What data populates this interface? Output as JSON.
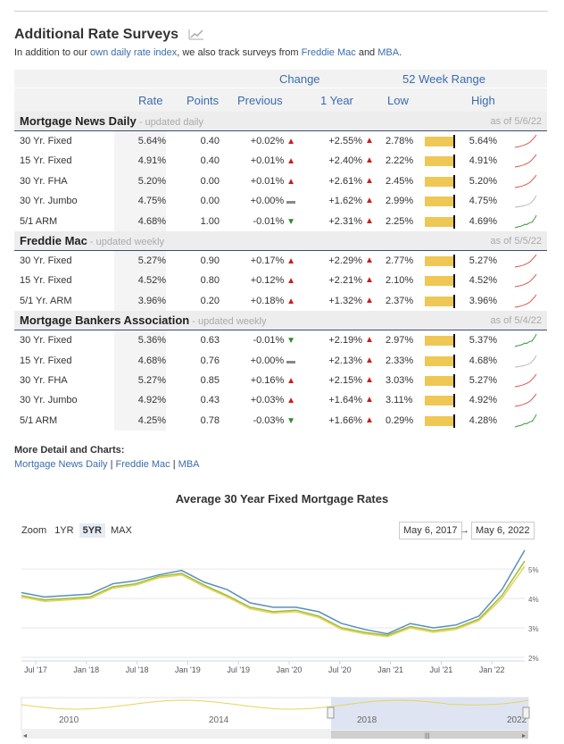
{
  "header": {
    "title": "Additional Rate Surveys",
    "intro_before": "In addition to our ",
    "intro_link": "own daily rate index",
    "intro_middle": ", we also track surveys from ",
    "freddie_link": "Freddie Mac",
    "intro_and": " and ",
    "mba_link": "MBA",
    "intro_end": "."
  },
  "table": {
    "group_headers": {
      "change": "Change",
      "range": "52 Week Range"
    },
    "columns": {
      "rate": "Rate",
      "points": "Points",
      "previous": "Previous",
      "year": "1 Year",
      "low": "Low",
      "high": "High"
    },
    "groups": [
      {
        "name": "Mortgage News Daily",
        "updated": " - updated daily",
        "as_of": "as of 5/6/22",
        "rows": [
          {
            "label": "30 Yr. Fixed",
            "rate": "5.64%",
            "points": "0.40",
            "prev": "+0.02%",
            "prev_dir": "up",
            "year": "+2.55%",
            "low": "2.78%",
            "high": "5.64%",
            "spark": "up"
          },
          {
            "label": "15 Yr. Fixed",
            "rate": "4.91%",
            "points": "0.40",
            "prev": "+0.01%",
            "prev_dir": "up",
            "year": "+2.40%",
            "low": "2.22%",
            "high": "4.91%",
            "spark": "up"
          },
          {
            "label": "30 Yr. FHA",
            "rate": "5.20%",
            "points": "0.00",
            "prev": "+0.01%",
            "prev_dir": "up",
            "year": "+2.61%",
            "low": "2.45%",
            "high": "5.20%",
            "spark": "up"
          },
          {
            "label": "30 Yr. Jumbo",
            "rate": "4.75%",
            "points": "0.00",
            "prev": "+0.00%",
            "prev_dir": "flat",
            "year": "+1.62%",
            "low": "2.99%",
            "high": "4.75%",
            "spark": "flat"
          },
          {
            "label": "5/1 ARM",
            "rate": "4.68%",
            "points": "1.00",
            "prev": "-0.01%",
            "prev_dir": "down",
            "year": "+2.31%",
            "low": "2.25%",
            "high": "4.69%",
            "spark": "down"
          }
        ]
      },
      {
        "name": "Freddie Mac",
        "updated": " - updated weekly",
        "as_of": "as of 5/5/22",
        "rows": [
          {
            "label": "30 Yr. Fixed",
            "rate": "5.27%",
            "points": "0.90",
            "prev": "+0.17%",
            "prev_dir": "up",
            "year": "+2.29%",
            "low": "2.77%",
            "high": "5.27%",
            "spark": "up"
          },
          {
            "label": "15 Yr. Fixed",
            "rate": "4.52%",
            "points": "0.80",
            "prev": "+0.12%",
            "prev_dir": "up",
            "year": "+2.21%",
            "low": "2.10%",
            "high": "4.52%",
            "spark": "up"
          },
          {
            "label": "5/1 Yr. ARM",
            "rate": "3.96%",
            "points": "0.20",
            "prev": "+0.18%",
            "prev_dir": "up",
            "year": "+1.32%",
            "low": "2.37%",
            "high": "3.96%",
            "spark": "up"
          }
        ]
      },
      {
        "name": "Mortgage Bankers Association",
        "updated": " - updated weekly",
        "as_of": "as of 5/4/22",
        "rows": [
          {
            "label": "30 Yr. Fixed",
            "rate": "5.36%",
            "points": "0.63",
            "prev": "-0.01%",
            "prev_dir": "down",
            "year": "+2.19%",
            "low": "2.97%",
            "high": "5.37%",
            "spark": "down"
          },
          {
            "label": "15 Yr. Fixed",
            "rate": "4.68%",
            "points": "0.76",
            "prev": "+0.00%",
            "prev_dir": "flat",
            "year": "+2.13%",
            "low": "2.33%",
            "high": "4.68%",
            "spark": "flat"
          },
          {
            "label": "30 Yr. FHA",
            "rate": "5.27%",
            "points": "0.85",
            "prev": "+0.16%",
            "prev_dir": "up",
            "year": "+2.15%",
            "low": "3.03%",
            "high": "5.27%",
            "spark": "up"
          },
          {
            "label": "30 Yr. Jumbo",
            "rate": "4.92%",
            "points": "0.43",
            "prev": "+0.03%",
            "prev_dir": "up",
            "year": "+1.64%",
            "low": "3.11%",
            "high": "4.92%",
            "spark": "up"
          },
          {
            "label": "5/1 ARM",
            "rate": "4.25%",
            "points": "0.78",
            "prev": "-0.03%",
            "prev_dir": "down",
            "year": "+1.66%",
            "low": "0.29%",
            "high": "4.28%",
            "spark": "down"
          }
        ]
      }
    ]
  },
  "more": {
    "title": "More Detail and Charts:",
    "links": [
      "Mortgage News Daily",
      "Freddie Mac",
      "MBA"
    ],
    "separator": "|"
  },
  "chart": {
    "zoom_label": "Zoom",
    "zoom_buttons": [
      "1YR",
      "5YR",
      "MAX"
    ],
    "zoom_active": "5YR",
    "date_from": "May 6, 2017",
    "date_to": "May 6, 2022",
    "date_arrow": "→",
    "navigator_labels": [
      "2010",
      "2014",
      "2018",
      "2022"
    ],
    "scrollbar_grip": "|||"
  },
  "colors": {
    "accent": "#3a6cae",
    "bar": "#eec755",
    "up": "#c81e1e",
    "down": "#2e8b2e",
    "series_blue": "#5b8fb9",
    "series_green": "#9bbd3c",
    "series_yellow": "#e8d35a"
  },
  "chart_data": {
    "type": "line",
    "title": "Average 30 Year Fixed Mortgage Rates",
    "x_ticks": [
      "Jul '17",
      "Jan '18",
      "Jul '18",
      "Jan '19",
      "Jul '19",
      "Jan '20",
      "Jul '20",
      "Jan '21",
      "Jul '21",
      "Jan '22"
    ],
    "y_ticks": [
      "2%",
      "3%",
      "4%",
      "5%"
    ],
    "ylim": [
      2,
      5.7
    ],
    "x": [
      "May '17",
      "Jul '17",
      "Oct '17",
      "Jan '18",
      "Apr '18",
      "Jul '18",
      "Oct '18",
      "Nov '18",
      "Jan '19",
      "Apr '19",
      "Jul '19",
      "Sep '19",
      "Jan '20",
      "Mar '20",
      "Jul '20",
      "Oct '20",
      "Jan '21",
      "Apr '21",
      "Jul '21",
      "Oct '21",
      "Jan '22",
      "Mar '22",
      "May '22"
    ],
    "series": [
      {
        "values": [
          4.2,
          4.05,
          4.1,
          4.15,
          4.5,
          4.6,
          4.8,
          4.95,
          4.55,
          4.3,
          3.85,
          3.7,
          3.7,
          3.55,
          3.15,
          2.95,
          2.8,
          3.15,
          3.0,
          3.1,
          3.4,
          4.3,
          5.64
        ]
      },
      {
        "values": [
          4.1,
          3.95,
          4.0,
          4.05,
          4.4,
          4.5,
          4.75,
          4.85,
          4.45,
          4.1,
          3.7,
          3.55,
          3.6,
          3.4,
          3.0,
          2.85,
          2.75,
          3.05,
          2.9,
          3.0,
          3.3,
          4.1,
          5.27
        ]
      },
      {
        "values": [
          4.05,
          3.9,
          3.95,
          4.0,
          4.35,
          4.45,
          4.7,
          4.8,
          4.4,
          4.05,
          3.65,
          3.5,
          3.55,
          3.35,
          2.95,
          2.8,
          2.7,
          3.0,
          2.85,
          2.95,
          3.25,
          4.0,
          5.1
        ]
      }
    ]
  }
}
